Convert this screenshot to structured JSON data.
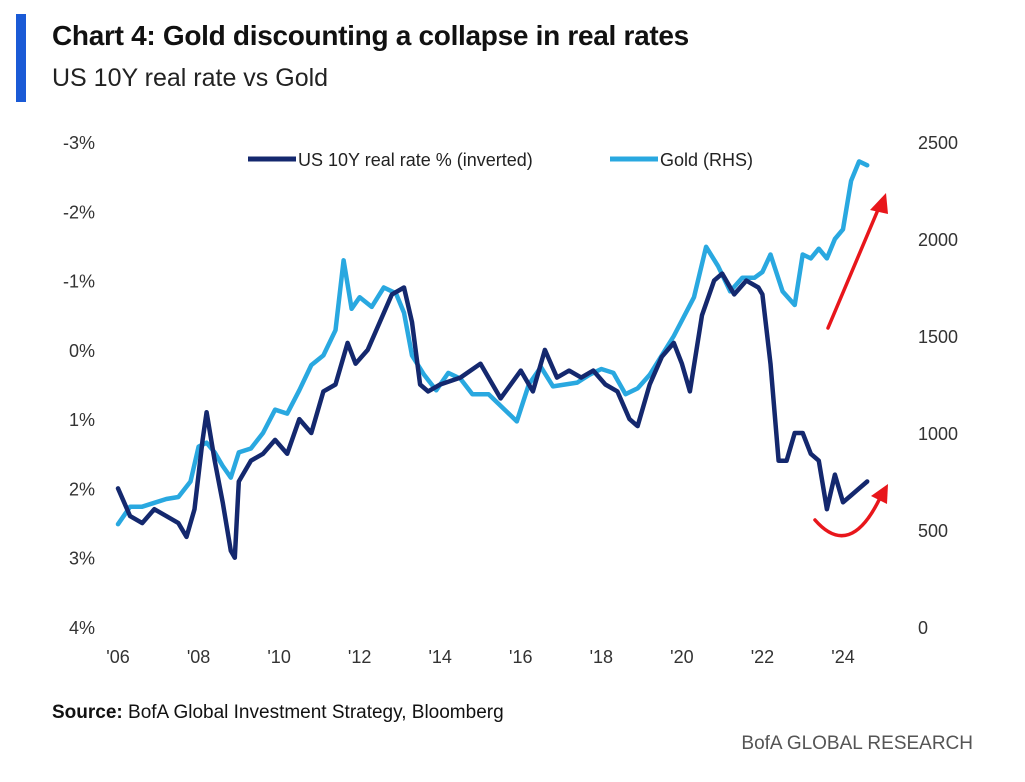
{
  "header": {
    "title": "Chart 4: Gold discounting a collapse in real rates",
    "subtitle": "US 10Y real rate vs Gold"
  },
  "footer": {
    "source_label": "Source:",
    "source_text": " BofA Global Investment Strategy, Bloomberg",
    "brand": "BofA GLOBAL RESEARCH"
  },
  "colors": {
    "accent": "#1a5ad6",
    "real_rate": "#14286e",
    "gold": "#29a8e0",
    "arrow": "#e8161b"
  },
  "chart_data": {
    "type": "line",
    "title": "Chart 4: Gold discounting a collapse in real rates",
    "subtitle": "US 10Y real rate vs Gold",
    "x_ticks": [
      "'06",
      "'08",
      "'10",
      "'12",
      "'14",
      "'16",
      "'18",
      "'20",
      "'22",
      "'24"
    ],
    "x_range": [
      2006,
      2024.75
    ],
    "left_axis": {
      "ticks": [
        "-3%",
        "-2%",
        "-1%",
        "0%",
        "1%",
        "2%",
        "3%",
        "4%"
      ],
      "range": [
        -3,
        4
      ],
      "inverted": true
    },
    "right_axis": {
      "ticks": [
        "2500",
        "2000",
        "1500",
        "1000",
        "500",
        "0"
      ],
      "range": [
        0,
        2500
      ]
    },
    "legend_position": "top-center",
    "grid": false,
    "series": [
      {
        "name": "US 10Y real rate % (inverted)",
        "axis": "left",
        "color": "#14286e",
        "x": [
          2006.0,
          2006.3,
          2006.6,
          2006.9,
          2007.2,
          2007.5,
          2007.7,
          2007.9,
          2008.1,
          2008.2,
          2008.4,
          2008.6,
          2008.8,
          2008.9,
          2009.0,
          2009.3,
          2009.6,
          2009.9,
          2010.2,
          2010.5,
          2010.8,
          2011.1,
          2011.4,
          2011.7,
          2011.9,
          2012.2,
          2012.5,
          2012.8,
          2013.1,
          2013.3,
          2013.5,
          2013.7,
          2014.0,
          2014.5,
          2015.0,
          2015.5,
          2016.0,
          2016.3,
          2016.6,
          2016.9,
          2017.2,
          2017.5,
          2017.8,
          2018.1,
          2018.4,
          2018.7,
          2018.9,
          2019.2,
          2019.5,
          2019.8,
          2020.0,
          2020.2,
          2020.5,
          2020.8,
          2021.0,
          2021.3,
          2021.6,
          2021.9,
          2022.0,
          2022.2,
          2022.4,
          2022.6,
          2022.8,
          2023.0,
          2023.2,
          2023.4,
          2023.6,
          2023.8,
          2024.0,
          2024.2,
          2024.4,
          2024.6
        ],
        "values": [
          2.0,
          2.4,
          2.5,
          2.3,
          2.4,
          2.5,
          2.7,
          2.3,
          1.3,
          0.9,
          1.6,
          2.2,
          2.9,
          3.0,
          1.9,
          1.6,
          1.5,
          1.3,
          1.5,
          1.0,
          1.2,
          0.6,
          0.5,
          -0.1,
          0.2,
          0.0,
          -0.4,
          -0.8,
          -0.9,
          -0.4,
          0.5,
          0.6,
          0.5,
          0.4,
          0.2,
          0.7,
          0.3,
          0.6,
          0.0,
          0.4,
          0.3,
          0.4,
          0.3,
          0.5,
          0.6,
          1.0,
          1.1,
          0.5,
          0.1,
          -0.1,
          0.2,
          0.6,
          -0.5,
          -1.0,
          -1.1,
          -0.8,
          -1.0,
          -0.9,
          -0.8,
          0.2,
          1.6,
          1.6,
          1.2,
          1.2,
          1.5,
          1.6,
          2.3,
          1.8,
          2.2,
          2.1,
          2.0,
          1.9
        ]
      },
      {
        "name": "Gold (RHS)",
        "axis": "right",
        "color": "#29a8e0",
        "x": [
          2006.0,
          2006.3,
          2006.6,
          2006.9,
          2007.2,
          2007.5,
          2007.8,
          2008.0,
          2008.2,
          2008.4,
          2008.6,
          2008.8,
          2009.0,
          2009.3,
          2009.6,
          2009.9,
          2010.2,
          2010.5,
          2010.8,
          2011.1,
          2011.4,
          2011.6,
          2011.8,
          2012.0,
          2012.3,
          2012.6,
          2012.9,
          2013.1,
          2013.3,
          2013.6,
          2013.9,
          2014.2,
          2014.5,
          2014.8,
          2015.2,
          2015.6,
          2015.9,
          2016.2,
          2016.5,
          2016.8,
          2017.1,
          2017.4,
          2017.7,
          2018.0,
          2018.3,
          2018.6,
          2018.9,
          2019.2,
          2019.5,
          2019.8,
          2020.0,
          2020.3,
          2020.6,
          2020.9,
          2021.2,
          2021.5,
          2021.8,
          2022.0,
          2022.2,
          2022.5,
          2022.8,
          2023.0,
          2023.2,
          2023.4,
          2023.6,
          2023.8,
          2024.0,
          2024.2,
          2024.4,
          2024.6
        ],
        "values": [
          530,
          620,
          620,
          640,
          660,
          670,
          750,
          930,
          950,
          900,
          830,
          770,
          900,
          920,
          1000,
          1120,
          1100,
          1220,
          1350,
          1400,
          1530,
          1890,
          1640,
          1700,
          1650,
          1750,
          1720,
          1620,
          1400,
          1300,
          1220,
          1310,
          1280,
          1200,
          1200,
          1120,
          1060,
          1250,
          1340,
          1240,
          1250,
          1260,
          1300,
          1330,
          1310,
          1200,
          1230,
          1300,
          1400,
          1500,
          1580,
          1700,
          1960,
          1860,
          1730,
          1800,
          1800,
          1830,
          1920,
          1730,
          1660,
          1920,
          1900,
          1950,
          1900,
          2000,
          2050,
          2300,
          2400,
          2380
        ]
      }
    ],
    "annotations": [
      "upward red arrow near Gold",
      "upward curved red arrow near real rate"
    ]
  }
}
